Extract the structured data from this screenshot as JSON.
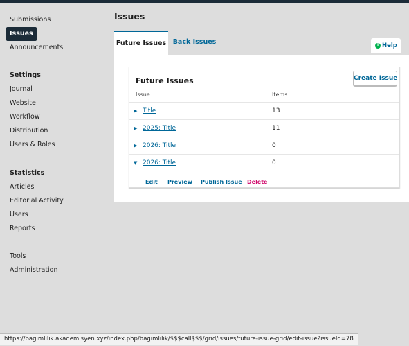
{
  "sidebar": {
    "links_top": [
      "Submissions",
      "Issues",
      "Announcements"
    ],
    "settings_heading": "Settings",
    "settings_links": [
      "Journal",
      "Website",
      "Workflow",
      "Distribution",
      "Users & Roles"
    ],
    "statistics_heading": "Statistics",
    "statistics_links": [
      "Articles",
      "Editorial Activity",
      "Users",
      "Reports"
    ],
    "links_bottom": [
      "Tools",
      "Administration"
    ]
  },
  "page_title": "Issues",
  "tabs": [
    "Future Issues",
    "Back Issues"
  ],
  "help_label": "Help",
  "grid": {
    "title": "Future Issues",
    "create_label": "Create Issue",
    "columns": [
      "Issue",
      "Items"
    ],
    "rows": [
      {
        "title": "Title",
        "items": "13",
        "expanded": false
      },
      {
        "title": "2025: Title",
        "items": "11",
        "expanded": false
      },
      {
        "title": "2026: Title",
        "items": "0",
        "expanded": false
      },
      {
        "title": "2026: Title",
        "items": "0",
        "expanded": true
      }
    ],
    "actions": [
      {
        "label": "Edit",
        "color": "#006798"
      },
      {
        "label": "Preview",
        "color": "#006798"
      },
      {
        "label": "Publish Issue",
        "color": "#006798"
      },
      {
        "label": "Delete",
        "color": "#d00a6c"
      }
    ]
  },
  "status_url": "https://bagimlilik.akademisyen.xyz/index.php/bagimlilik/$$$call$$$/grid/issues/future-issue-grid/edit-issue?issueId=78",
  "colors": {
    "accent": "#006798",
    "nav_dark": "#1b2b38",
    "delete": "#d00a6c",
    "help_green": "#00b24e"
  }
}
